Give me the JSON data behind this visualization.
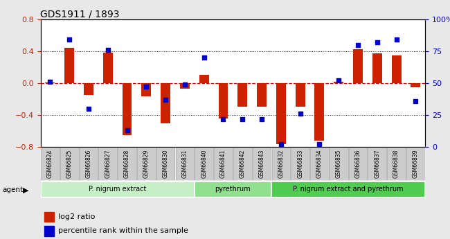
{
  "title": "GDS1911 / 1893",
  "samples": [
    "GSM66824",
    "GSM66825",
    "GSM66826",
    "GSM66827",
    "GSM66828",
    "GSM66829",
    "GSM66830",
    "GSM66831",
    "GSM66840",
    "GSM66841",
    "GSM66842",
    "GSM66843",
    "GSM66832",
    "GSM66833",
    "GSM66834",
    "GSM66835",
    "GSM66836",
    "GSM66837",
    "GSM66838",
    "GSM66839"
  ],
  "log2_ratio": [
    0.01,
    0.44,
    -0.15,
    0.38,
    -0.65,
    -0.17,
    -0.5,
    -0.07,
    0.1,
    -0.44,
    -0.3,
    -0.3,
    -0.76,
    -0.3,
    -0.72,
    0.02,
    0.42,
    0.37,
    0.35,
    -0.05
  ],
  "percentile": [
    51,
    84,
    30,
    76,
    13,
    47,
    37,
    49,
    70,
    22,
    22,
    22,
    2,
    26,
    2,
    52,
    80,
    82,
    84,
    36
  ],
  "groups": [
    {
      "label": "P. nigrum extract",
      "start": 0,
      "end": 7,
      "color": "#c8f0c8"
    },
    {
      "label": "pyrethrum",
      "start": 8,
      "end": 11,
      "color": "#90e090"
    },
    {
      "label": "P. nigrum extract and pyrethrum",
      "start": 12,
      "end": 19,
      "color": "#50cc50"
    }
  ],
  "bar_color": "#cc2200",
  "dot_color": "#0000cc",
  "ylim_left": [
    -0.8,
    0.8
  ],
  "ylim_right": [
    0,
    100
  ],
  "hline_color": "#dd0000",
  "dotted_color": "#222222",
  "figure_bg": "#e8e8e8",
  "plot_bg": "white",
  "agent_label": "agent",
  "legend_log2": "log2 ratio",
  "legend_pct": "percentile rank within the sample",
  "xtick_box_color": "#cccccc",
  "xtick_box_edge": "#aaaaaa"
}
